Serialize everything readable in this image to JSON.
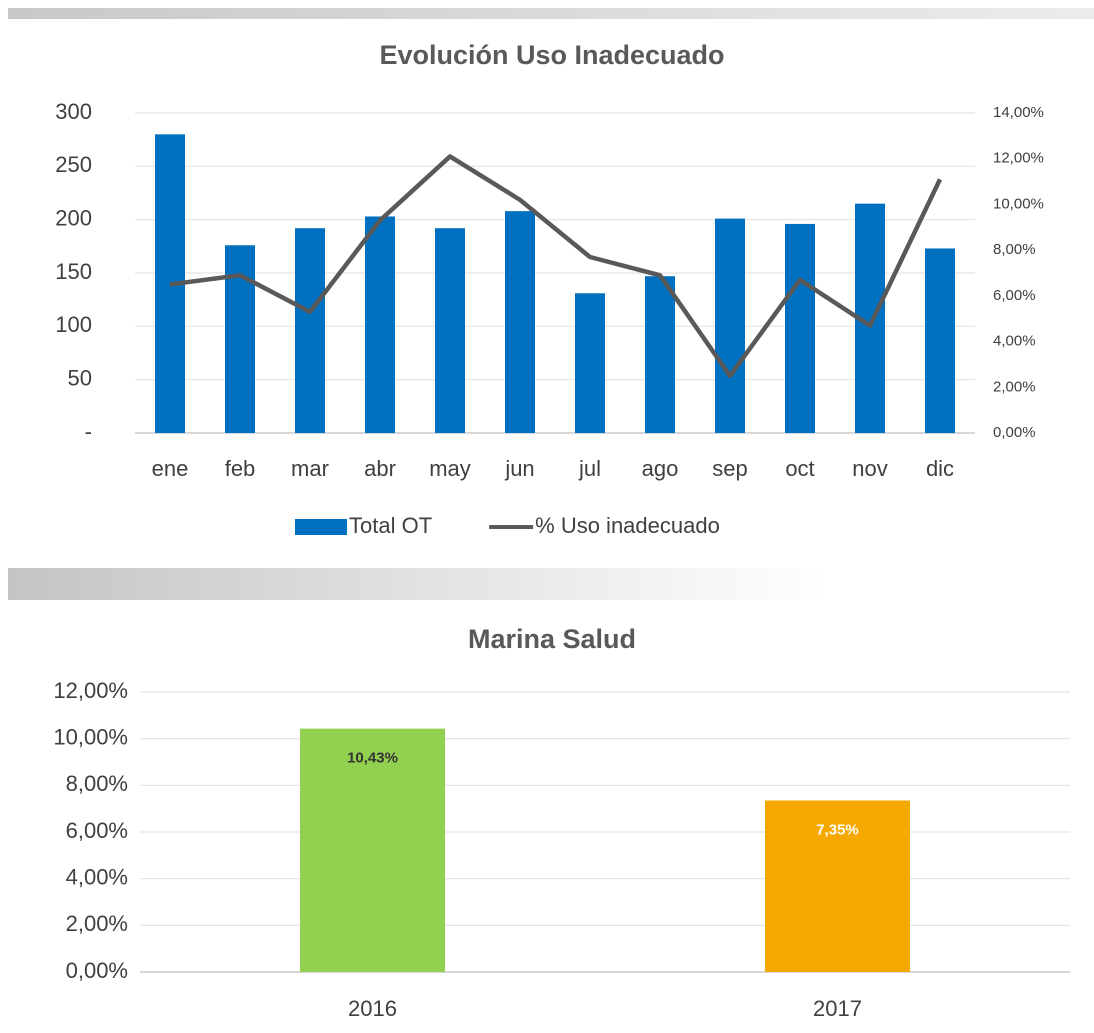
{
  "chart_data": [
    {
      "type": "combo",
      "title": "Evolución Uso Inadecuado",
      "categories": [
        "ene",
        "feb",
        "mar",
        "abr",
        "may",
        "jun",
        "jul",
        "ago",
        "sep",
        "oct",
        "nov",
        "dic"
      ],
      "series": [
        {
          "name": "Total OT",
          "type": "bar",
          "color": "#0070c0",
          "values": [
            280,
            176,
            192,
            203,
            192,
            208,
            131,
            147,
            201,
            196,
            215,
            173
          ]
        },
        {
          "name": "% Uso inadecuado",
          "type": "line",
          "axis": "y2",
          "color": "#595959",
          "values": [
            6.5,
            6.9,
            5.3,
            9.3,
            12.1,
            10.2,
            7.7,
            6.9,
            2.5,
            6.7,
            4.7,
            11.1
          ]
        }
      ],
      "ylim": [
        0,
        300
      ],
      "yticks": [
        {
          "value": 0,
          "label": "-"
        },
        50,
        100,
        150,
        200,
        250,
        300
      ],
      "y2lim": [
        0,
        14
      ],
      "y2ticks": [
        {
          "value": 0,
          "label": "0,00%"
        },
        {
          "value": 2,
          "label": "2,00%"
        },
        {
          "value": 4,
          "label": "4,00%"
        },
        {
          "value": 6,
          "label": "6,00%"
        },
        {
          "value": 8,
          "label": "8,00%"
        },
        {
          "value": 10,
          "label": "10,00%"
        },
        {
          "value": 12,
          "label": "12,00%"
        },
        {
          "value": 14,
          "label": "14,00%"
        }
      ],
      "grid": true,
      "legend": "bottom"
    },
    {
      "type": "bar",
      "title": "Marina Salud",
      "categories": [
        "2016",
        "2017"
      ],
      "values": [
        10.43,
        7.35
      ],
      "value_labels": [
        "10,43%",
        "7,35%"
      ],
      "colors": [
        "#92d050",
        "#f5a800"
      ],
      "value_label_colors": [
        "#333333",
        "#ffffff"
      ],
      "ylim": [
        0,
        12
      ],
      "yticks": [
        {
          "value": 0,
          "label": "0,00%"
        },
        {
          "value": 2,
          "label": "2,00%"
        },
        {
          "value": 4,
          "label": "4,00%"
        },
        {
          "value": 6,
          "label": "6,00%"
        },
        {
          "value": 8,
          "label": "8,00%"
        },
        {
          "value": 10,
          "label": "10,00%"
        },
        {
          "value": 12,
          "label": "12,00%"
        }
      ],
      "grid": true
    }
  ]
}
